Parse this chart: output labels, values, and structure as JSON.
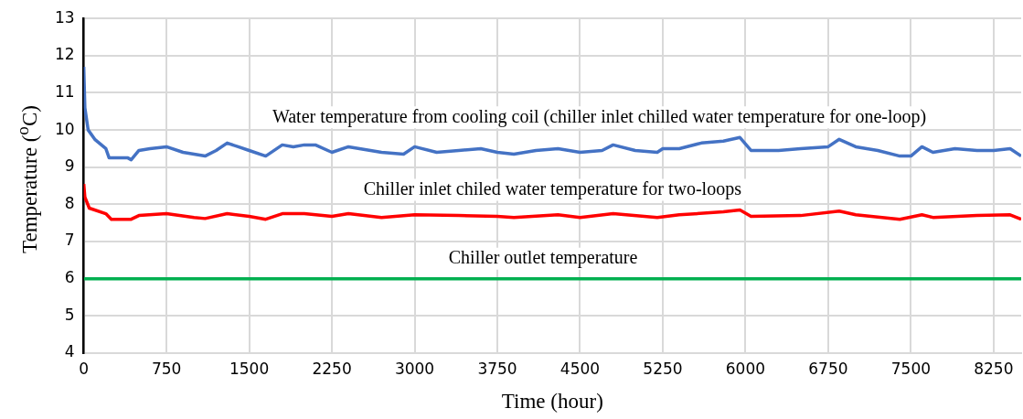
{
  "chart_data": {
    "type": "line",
    "xlabel": "Time (hour)",
    "ylabel": "Temperature ($^{o}$C)",
    "xlim": [
      0,
      8500
    ],
    "xticks": [
      0,
      750,
      1500,
      2250,
      3000,
      3750,
      4500,
      5250,
      6000,
      6750,
      7500,
      8250
    ],
    "ylim": [
      4,
      13
    ],
    "yticks": [
      4,
      5,
      6,
      7,
      8,
      9,
      10,
      11,
      12,
      13
    ],
    "grid": true,
    "legend": false,
    "marker": "none",
    "line_style": "solid",
    "series": [
      {
        "name": "Water temperature from cooling coil (chiller inlet chilled water temperature for one-loop)",
        "color": "#4472c4",
        "x": [
          0,
          10,
          40,
          100,
          200,
          230,
          400,
          430,
          500,
          600,
          750,
          900,
          1000,
          1100,
          1200,
          1300,
          1400,
          1500,
          1650,
          1800,
          1900,
          2000,
          2100,
          2250,
          2400,
          2600,
          2700,
          2900,
          3000,
          3200,
          3400,
          3600,
          3750,
          3900,
          4100,
          4300,
          4500,
          4700,
          4800,
          5000,
          5200,
          5250,
          5400,
          5600,
          5800,
          5950,
          6050,
          6300,
          6500,
          6750,
          6850,
          7000,
          7200,
          7400,
          7500,
          7600,
          7700,
          7900,
          8100,
          8250,
          8400,
          8500
        ],
        "values": [
          11.7,
          10.6,
          10.0,
          9.75,
          9.5,
          9.25,
          9.25,
          9.2,
          9.45,
          9.5,
          9.55,
          9.4,
          9.35,
          9.3,
          9.45,
          9.65,
          9.55,
          9.45,
          9.3,
          9.6,
          9.55,
          9.6,
          9.6,
          9.4,
          9.55,
          9.45,
          9.4,
          9.35,
          9.55,
          9.4,
          9.45,
          9.5,
          9.4,
          9.35,
          9.45,
          9.5,
          9.4,
          9.45,
          9.6,
          9.45,
          9.4,
          9.5,
          9.5,
          9.65,
          9.7,
          9.8,
          9.45,
          9.45,
          9.5,
          9.55,
          9.75,
          9.55,
          9.45,
          9.3,
          9.3,
          9.55,
          9.4,
          9.5,
          9.45,
          9.45,
          9.5,
          9.3
        ]
      },
      {
        "name": "Chiller inlet chiled water temperature for two-loops",
        "color": "#ff0000",
        "x": [
          0,
          10,
          50,
          200,
          250,
          430,
          500,
          750,
          1000,
          1100,
          1300,
          1500,
          1650,
          1800,
          2000,
          2250,
          2400,
          2700,
          3000,
          3400,
          3750,
          3900,
          4300,
          4500,
          4800,
          5200,
          5400,
          5800,
          5950,
          6050,
          6500,
          6850,
          7000,
          7400,
          7600,
          7700,
          8100,
          8400,
          8500
        ],
        "values": [
          8.55,
          8.2,
          7.9,
          7.75,
          7.6,
          7.6,
          7.7,
          7.75,
          7.65,
          7.62,
          7.75,
          7.68,
          7.6,
          7.75,
          7.75,
          7.68,
          7.75,
          7.65,
          7.72,
          7.7,
          7.68,
          7.65,
          7.72,
          7.65,
          7.75,
          7.65,
          7.72,
          7.8,
          7.85,
          7.68,
          7.7,
          7.82,
          7.72,
          7.6,
          7.72,
          7.65,
          7.7,
          7.72,
          7.6
        ]
      },
      {
        "name": "Chiller outlet temperature",
        "color": "#00b050",
        "x": [
          0,
          8500
        ],
        "values": [
          6,
          6
        ]
      }
    ]
  }
}
